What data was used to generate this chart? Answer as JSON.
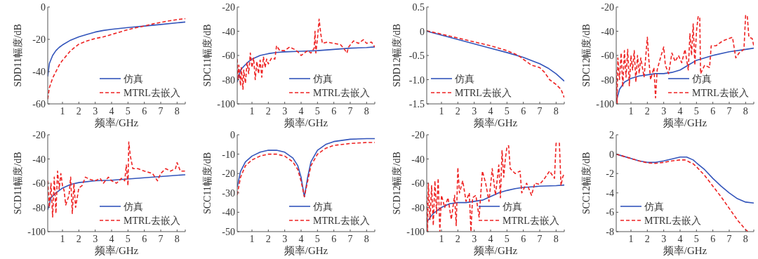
{
  "chart_data": [
    {
      "type": "line",
      "xlabel": "频率/GHz",
      "ylabel": "SDD11幅度/dB",
      "xlim": [
        0.1,
        8.5
      ],
      "xticks": [
        1,
        2,
        3,
        4,
        5,
        6,
        7,
        8
      ],
      "ylim": [
        -60,
        0
      ],
      "yticks": [
        -60,
        -40,
        -20,
        0
      ],
      "legend": "bottom right",
      "series": [
        {
          "name": "仿真",
          "color": "#3355bb",
          "line_style": "solid",
          "x": [
            0.1,
            0.2,
            0.4,
            0.6,
            0.8,
            1,
            1.5,
            2,
            2.5,
            3,
            3.5,
            4,
            5,
            6,
            7,
            8,
            8.5
          ],
          "values": [
            -43,
            -35,
            -30,
            -27,
            -25,
            -23.5,
            -20.5,
            -18.5,
            -17,
            -15.5,
            -14.5,
            -13.8,
            -12.7,
            -11.8,
            -10.8,
            -9.8,
            -9.3
          ]
        },
        {
          "name": "MTRL去嵌入",
          "color": "#ee2222",
          "line_style": "dashed",
          "x": [
            0.1,
            0.2,
            0.4,
            0.6,
            0.8,
            1,
            1.5,
            2,
            2.5,
            3,
            3.5,
            4,
            4.5,
            5,
            5.5,
            6,
            6.5,
            7,
            7.5,
            8,
            8.5
          ],
          "values": [
            -57,
            -50,
            -44,
            -40,
            -36,
            -33,
            -27,
            -23,
            -21,
            -19.5,
            -18.5,
            -17,
            -15.5,
            -14,
            -12.8,
            -11.8,
            -10.5,
            -9.5,
            -8.6,
            -7.8,
            -7.2
          ]
        }
      ]
    },
    {
      "type": "line",
      "xlabel": "频率/GHz",
      "ylabel": "SDC11幅度/dB",
      "xlim": [
        0.1,
        8.5
      ],
      "xticks": [
        1,
        2,
        3,
        4,
        5,
        6,
        7,
        8
      ],
      "ylim": [
        -100,
        -20
      ],
      "yticks": [
        -100,
        -80,
        -60,
        -40,
        -20
      ],
      "legend": "bottom right",
      "series": [
        {
          "name": "仿真",
          "color": "#3355bb",
          "line_style": "solid",
          "x": [
            0.1,
            0.3,
            0.5,
            0.8,
            1,
            1.5,
            2,
            2.5,
            3,
            4,
            5,
            6,
            7,
            8,
            8.5
          ],
          "values": [
            -82,
            -72,
            -69,
            -65,
            -63,
            -60,
            -58.5,
            -57.5,
            -57,
            -56.5,
            -56,
            -55,
            -54,
            -53.5,
            -53
          ]
        },
        {
          "name": "MTRL去嵌入",
          "color": "#ee2222",
          "line_style": "dashed",
          "x": [
            0.1,
            0.15,
            0.2,
            0.3,
            0.35,
            0.45,
            0.5,
            0.6,
            0.7,
            0.8,
            0.9,
            1.0,
            1.1,
            1.2,
            1.3,
            1.4,
            1.5,
            1.6,
            1.7,
            1.8,
            1.9,
            2.0,
            2.2,
            2.4,
            2.5,
            2.7,
            3.0,
            3.3,
            3.6,
            3.8,
            4.0,
            4.2,
            4.4,
            4.6,
            4.8,
            4.85,
            4.9,
            5.0,
            5.1,
            5.2,
            5.3,
            5.6,
            6.0,
            6.4,
            6.6,
            6.8,
            6.9,
            7.2,
            7.5,
            7.8,
            8.0,
            8.3,
            8.5
          ],
          "values": [
            -63,
            -80,
            -68,
            -85,
            -70,
            -88,
            -72,
            -83,
            -66,
            -75,
            -58,
            -70,
            -62,
            -80,
            -65,
            -75,
            -64,
            -78,
            -61,
            -70,
            -63,
            -67,
            -62,
            -63,
            -52,
            -56,
            -56,
            -53,
            -55,
            -57,
            -60,
            -58,
            -56,
            -58,
            -54,
            -40,
            -58,
            -46,
            -30,
            -42,
            -50,
            -49,
            -50,
            -51,
            -54,
            -58,
            -53,
            -48,
            -50,
            -47,
            -50,
            -49,
            -53
          ]
        }
      ]
    },
    {
      "type": "line",
      "xlabel": "频率/GHz",
      "ylabel": "SDD12幅度/dB",
      "xlim": [
        0.1,
        8.5
      ],
      "xticks": [
        1,
        2,
        3,
        4,
        5,
        6,
        7,
        8
      ],
      "ylim": [
        -1.5,
        0.5
      ],
      "yticks": [
        -1.5,
        {
          "value": -1,
          "label": "-1.0"
        },
        -0.5,
        0,
        0.5
      ],
      "legend": "bottom left",
      "series": [
        {
          "name": "仿真",
          "color": "#3355bb",
          "line_style": "solid",
          "x": [
            0.1,
            1,
            2,
            3,
            4,
            5,
            6,
            7,
            7.5,
            8,
            8.5
          ],
          "values": [
            0,
            -0.08,
            -0.17,
            -0.26,
            -0.35,
            -0.44,
            -0.54,
            -0.67,
            -0.76,
            -0.88,
            -1.03
          ]
        },
        {
          "name": "MTRL去嵌入",
          "color": "#ee2222",
          "line_style": "dashed",
          "x": [
            0.1,
            1,
            2,
            3,
            4,
            5,
            5.7,
            6,
            6.5,
            7,
            7.3,
            7.6,
            8,
            8.3,
            8.5
          ],
          "values": [
            0.01,
            -0.06,
            -0.14,
            -0.22,
            -0.3,
            -0.4,
            -0.5,
            -0.58,
            -0.7,
            -0.75,
            -0.85,
            -1.0,
            -1.1,
            -1.2,
            -1.37
          ]
        }
      ]
    },
    {
      "type": "line",
      "xlabel": "频率/GHz",
      "ylabel": "SDC12幅度/dB",
      "xlim": [
        0.1,
        8.5
      ],
      "xticks": [
        1,
        2,
        3,
        4,
        5,
        6,
        7,
        8
      ],
      "ylim": [
        -100,
        -20
      ],
      "yticks": [
        -100,
        -80,
        -60,
        -40,
        -20
      ],
      "legend": "bottom right",
      "series": [
        {
          "name": "仿真",
          "color": "#3355bb",
          "line_style": "solid",
          "x": [
            0.1,
            0.3,
            0.6,
            1,
            1.5,
            2,
            2.5,
            3,
            3.5,
            4,
            4.5,
            5,
            5.5,
            6,
            7,
            8,
            8.5
          ],
          "values": [
            -98,
            -88,
            -82,
            -79,
            -77,
            -76,
            -75,
            -75,
            -74,
            -72,
            -68,
            -64,
            -62,
            -60,
            -57,
            -55,
            -54
          ]
        },
        {
          "name": "MTRL去嵌入",
          "color": "#ee2222",
          "line_style": "dashed",
          "x": [
            0.1,
            0.15,
            0.2,
            0.3,
            0.4,
            0.5,
            0.6,
            0.7,
            0.8,
            0.9,
            1.0,
            1.1,
            1.2,
            1.3,
            1.4,
            1.5,
            1.6,
            1.8,
            2.0,
            2.1,
            2.2,
            2.4,
            2.5,
            2.6,
            2.8,
            3.0,
            3.1,
            3.3,
            3.5,
            3.7,
            3.9,
            4.1,
            4.3,
            4.5,
            4.6,
            4.7,
            4.8,
            4.9,
            5.0,
            5.1,
            5.2,
            5.25,
            5.5,
            5.8,
            5.9,
            6.2,
            6.6,
            7.0,
            7.2,
            7.4,
            7.6,
            7.9,
            8.0,
            8.1,
            8.2,
            8.4,
            8.5
          ],
          "values": [
            -72,
            -100,
            -62,
            -80,
            -58,
            -86,
            -56,
            -78,
            -55,
            -85,
            -60,
            -72,
            -56,
            -82,
            -60,
            -75,
            -62,
            -78,
            -45,
            -65,
            -80,
            -70,
            -95,
            -72,
            -62,
            -53,
            -68,
            -75,
            -58,
            -65,
            -60,
            -66,
            -55,
            -72,
            -42,
            -60,
            -34,
            -68,
            -40,
            -28,
            -28,
            -75,
            -68,
            -70,
            -52,
            -52,
            -48,
            -46,
            -45,
            -62,
            -58,
            -55,
            -27,
            -27,
            -45,
            -46,
            -52
          ]
        }
      ]
    },
    {
      "type": "line",
      "xlabel": "频率/GHz",
      "ylabel": "SCD11幅度/dB",
      "xlim": [
        0.1,
        8.5
      ],
      "xticks": [
        1,
        2,
        3,
        4,
        5,
        6,
        7,
        8
      ],
      "ylim": [
        -100,
        -20
      ],
      "yticks": [
        -100,
        -80,
        -60,
        -40,
        -20
      ],
      "legend": "bottom right",
      "series": [
        {
          "name": "仿真",
          "color": "#3355bb",
          "line_style": "solid",
          "x": [
            0.1,
            0.3,
            0.6,
            1,
            1.5,
            2,
            3,
            4,
            5,
            6,
            7,
            8,
            8.5
          ],
          "values": [
            -82,
            -72,
            -68,
            -64,
            -61,
            -59.5,
            -58,
            -57.5,
            -56.5,
            -55.5,
            -54.5,
            -53.5,
            -53
          ]
        },
        {
          "name": "MTRL去嵌入",
          "color": "#ee2222",
          "line_style": "dashed",
          "x": [
            0.1,
            0.2,
            0.3,
            0.4,
            0.5,
            0.6,
            0.7,
            0.8,
            0.9,
            1.0,
            1.1,
            1.2,
            1.4,
            1.5,
            1.6,
            1.7,
            1.8,
            2.0,
            2.2,
            2.4,
            2.7,
            3.0,
            3.3,
            3.5,
            3.8,
            4.0,
            4.3,
            4.6,
            4.8,
            4.9,
            5.0,
            5.05,
            5.15,
            5.3,
            5.6,
            6.0,
            6.5,
            6.8,
            7.0,
            7.3,
            7.6,
            7.9,
            8.0,
            8.2,
            8.5
          ],
          "values": [
            -58,
            -80,
            -60,
            -88,
            -55,
            -85,
            -50,
            -65,
            -52,
            -62,
            -66,
            -78,
            -70,
            -55,
            -85,
            -60,
            -80,
            -64,
            -62,
            -55,
            -57,
            -58,
            -56,
            -60,
            -55,
            -58,
            -60,
            -56,
            -58,
            -45,
            -62,
            -26,
            -38,
            -48,
            -48,
            -50,
            -52,
            -58,
            -52,
            -48,
            -50,
            -48,
            -43,
            -50,
            -50
          ]
        }
      ]
    },
    {
      "type": "line",
      "xlabel": "频率/GHz",
      "ylabel": "SCC11幅度/dB",
      "xlim": [
        0.1,
        8.5
      ],
      "xticks": [
        1,
        2,
        3,
        4,
        5,
        6,
        7,
        8
      ],
      "ylim": [
        -50,
        0
      ],
      "yticks": [
        -50,
        -40,
        -30,
        -20,
        -10,
        0
      ],
      "legend": "bottom right",
      "series": [
        {
          "name": "仿真",
          "color": "#3355bb",
          "line_style": "solid",
          "x": [
            0.1,
            0.3,
            0.6,
            1,
            1.5,
            2,
            2.5,
            3,
            3.5,
            3.8,
            4.0,
            4.2,
            4.4,
            4.6,
            5,
            5.5,
            6,
            7,
            8,
            8.5
          ],
          "values": [
            -27,
            -19,
            -14,
            -11,
            -9,
            -8,
            -8,
            -9,
            -12,
            -16,
            -22,
            -32,
            -22,
            -14,
            -8,
            -5,
            -3.5,
            -2.3,
            -2,
            -2
          ]
        },
        {
          "name": "MTRL去嵌入",
          "color": "#ee2222",
          "line_style": "dashed",
          "x": [
            0.1,
            0.3,
            0.6,
            1,
            1.5,
            2,
            2.5,
            3,
            3.5,
            3.8,
            4.0,
            4.2,
            4.4,
            4.6,
            5,
            5.5,
            6,
            7,
            8,
            8.5
          ],
          "values": [
            -31,
            -22,
            -16,
            -13,
            -11,
            -10,
            -10,
            -11,
            -14,
            -18,
            -24,
            -32,
            -24,
            -16,
            -10,
            -7,
            -5.5,
            -4.5,
            -4,
            -4
          ]
        }
      ]
    },
    {
      "type": "line",
      "xlabel": "频率/GHz",
      "ylabel": "SCD12幅度/dB",
      "xlim": [
        0.1,
        8.5
      ],
      "xticks": [
        1,
        2,
        3,
        4,
        5,
        6,
        7,
        8
      ],
      "ylim": [
        -100,
        -20
      ],
      "yticks": [
        -100,
        -80,
        -60,
        -40,
        -20
      ],
      "legend": "bottom right",
      "series": [
        {
          "name": "仿真",
          "color": "#3355bb",
          "line_style": "solid",
          "x": [
            0.1,
            0.5,
            1,
            1.5,
            2,
            2.5,
            3,
            3.5,
            4,
            4.5,
            5,
            5.5,
            6,
            7,
            8,
            8.5
          ],
          "values": [
            -92,
            -85,
            -80,
            -77,
            -76,
            -76,
            -75,
            -74,
            -71,
            -68,
            -66,
            -64.5,
            -63.5,
            -62.5,
            -62,
            -61.5
          ]
        },
        {
          "name": "MTRL去嵌入",
          "color": "#ee2222",
          "line_style": "dashed",
          "x": [
            0.1,
            0.15,
            0.2,
            0.3,
            0.4,
            0.5,
            0.6,
            0.7,
            0.8,
            0.9,
            1.0,
            1.2,
            1.4,
            1.6,
            1.8,
            1.9,
            2.0,
            2.1,
            2.3,
            2.5,
            2.7,
            2.8,
            2.9,
            3.1,
            3.3,
            3.5,
            3.7,
            3.9,
            4.1,
            4.3,
            4.5,
            4.6,
            4.7,
            4.8,
            4.9,
            5.0,
            5.1,
            5.2,
            5.5,
            5.8,
            5.9,
            6.2,
            6.5,
            6.7,
            7.0,
            7.3,
            7.6,
            7.9,
            8.0,
            8.2,
            8.3,
            8.4,
            8.5
          ],
          "values": [
            -70,
            -100,
            -60,
            -90,
            -62,
            -95,
            -58,
            -85,
            -56,
            -100,
            -70,
            -80,
            -72,
            -90,
            -70,
            -95,
            -47,
            -68,
            -58,
            -75,
            -68,
            -100,
            -72,
            -70,
            -88,
            -50,
            -60,
            -75,
            -48,
            -70,
            -45,
            -72,
            -33,
            -55,
            -40,
            -30,
            -29,
            -48,
            -52,
            -50,
            -68,
            -60,
            -70,
            -60,
            -61,
            -56,
            -50,
            -56,
            -27,
            -27,
            -62,
            -55,
            -52
          ]
        }
      ]
    },
    {
      "type": "line",
      "xlabel": "频率/GHz",
      "ylabel": "SCC12幅度/dB",
      "xlim": [
        0.1,
        8.5
      ],
      "xticks": [
        1,
        2,
        3,
        4,
        5,
        6,
        7,
        8
      ],
      "ylim": [
        -8,
        2
      ],
      "yticks": [
        -8,
        -6,
        -4,
        -2,
        0,
        2
      ],
      "legend": "bottom left",
      "series": [
        {
          "name": "仿真",
          "color": "#3355bb",
          "line_style": "solid",
          "x": [
            0.1,
            0.5,
            1,
            1.5,
            2,
            2.5,
            3,
            3.5,
            4,
            4.4,
            4.8,
            5,
            5.5,
            6,
            6.5,
            7,
            7.5,
            8,
            8.5
          ],
          "values": [
            0,
            -0.2,
            -0.45,
            -0.7,
            -0.85,
            -0.85,
            -0.7,
            -0.5,
            -0.3,
            -0.3,
            -0.6,
            -0.9,
            -1.6,
            -2.5,
            -3.3,
            -4.0,
            -4.6,
            -4.95,
            -5.05
          ]
        },
        {
          "name": "MTRL去嵌入",
          "color": "#ee2222",
          "line_style": "dashed",
          "x": [
            0.1,
            0.5,
            1,
            1.5,
            2,
            2.5,
            3,
            3.5,
            4,
            4.3,
            4.8,
            5,
            5.5,
            6,
            6.5,
            7,
            7.5,
            8,
            8.15
          ],
          "values": [
            0,
            -0.2,
            -0.45,
            -0.7,
            -0.9,
            -0.95,
            -0.85,
            -0.7,
            -0.6,
            -0.6,
            -1.0,
            -1.3,
            -2.2,
            -3.3,
            -4.4,
            -5.6,
            -6.8,
            -7.8,
            -8
          ]
        }
      ]
    }
  ]
}
